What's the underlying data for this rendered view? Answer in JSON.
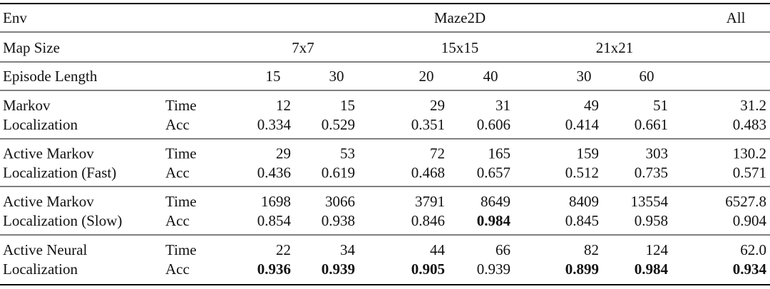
{
  "header": {
    "env_label": "Env",
    "env": "Maze2D",
    "all": "All",
    "map_size_label": "Map Size",
    "map_sizes": [
      "7x7",
      "15x15",
      "21x21"
    ],
    "episode_length_label": "Episode Length",
    "episode_lengths": [
      "15",
      "30",
      "20",
      "40",
      "30",
      "60"
    ]
  },
  "groups": [
    {
      "method": [
        "Markov",
        "Localization"
      ],
      "rows": [
        {
          "metric": "Time",
          "values": [
            "12",
            "15",
            "29",
            "31",
            "49",
            "51",
            "31.2"
          ],
          "bold": [
            false,
            false,
            false,
            false,
            false,
            false,
            false
          ]
        },
        {
          "metric": "Acc",
          "values": [
            "0.334",
            "0.529",
            "0.351",
            "0.606",
            "0.414",
            "0.661",
            "0.483"
          ],
          "bold": [
            false,
            false,
            false,
            false,
            false,
            false,
            false
          ]
        }
      ]
    },
    {
      "method": [
        "Active Markov",
        "Localization (Fast)"
      ],
      "rows": [
        {
          "metric": "Time",
          "values": [
            "29",
            "53",
            "72",
            "165",
            "159",
            "303",
            "130.2"
          ],
          "bold": [
            false,
            false,
            false,
            false,
            false,
            false,
            false
          ]
        },
        {
          "metric": "Acc",
          "values": [
            "0.436",
            "0.619",
            "0.468",
            "0.657",
            "0.512",
            "0.735",
            "0.571"
          ],
          "bold": [
            false,
            false,
            false,
            false,
            false,
            false,
            false
          ]
        }
      ]
    },
    {
      "method": [
        "Active Markov",
        "Localization (Slow)"
      ],
      "rows": [
        {
          "metric": "Time",
          "values": [
            "1698",
            "3066",
            "3791",
            "8649",
            "8409",
            "13554",
            "6527.8"
          ],
          "bold": [
            false,
            false,
            false,
            false,
            false,
            false,
            false
          ]
        },
        {
          "metric": "Acc",
          "values": [
            "0.854",
            "0.938",
            "0.846",
            "0.984",
            "0.845",
            "0.958",
            "0.904"
          ],
          "bold": [
            false,
            false,
            false,
            true,
            false,
            false,
            false
          ]
        }
      ]
    },
    {
      "method": [
        "Active Neural",
        "Localization"
      ],
      "rows": [
        {
          "metric": "Time",
          "values": [
            "22",
            "34",
            "44",
            "66",
            "82",
            "124",
            "62.0"
          ],
          "bold": [
            false,
            false,
            false,
            false,
            false,
            false,
            false
          ]
        },
        {
          "metric": "Acc",
          "values": [
            "0.936",
            "0.939",
            "0.905",
            "0.939",
            "0.899",
            "0.984",
            "0.934"
          ],
          "bold": [
            true,
            true,
            true,
            false,
            true,
            true,
            true
          ]
        }
      ]
    }
  ]
}
